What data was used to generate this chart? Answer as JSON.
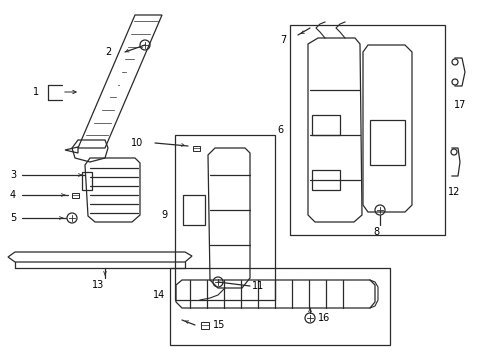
{
  "background_color": "#ffffff",
  "line_color": "#2a2a2a",
  "lw": 0.9,
  "fig_w": 4.89,
  "fig_h": 3.6,
  "dpi": 100
}
